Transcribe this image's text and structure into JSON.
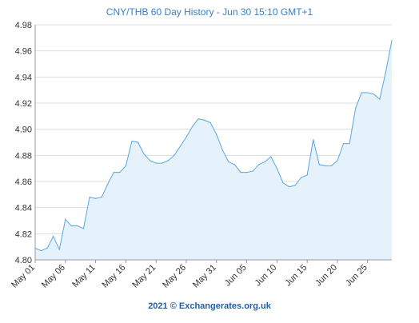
{
  "title": "CNY/THB 60 Day History - Jun 30 15:10 GMT+1",
  "footer": "2021 © Exchangerates.org.uk",
  "chart_data": {
    "type": "area",
    "title": "CNY/THB 60 Day History - Jun 30 15:10 GMT+1",
    "xlabel": "",
    "ylabel": "",
    "ylim": [
      4.8,
      4.98
    ],
    "yticks": [
      "4.80",
      "4.82",
      "4.84",
      "4.86",
      "4.88",
      "4.90",
      "4.92",
      "4.94",
      "4.96",
      "4.98"
    ],
    "xticks": [
      "May 01",
      "May 06",
      "May 11",
      "May 16",
      "May 21",
      "May 26",
      "May 31",
      "Jun 05",
      "Jun 10",
      "Jun 15",
      "Jun 20",
      "Jun 25"
    ],
    "grid": true,
    "line_color": "#5aa7de",
    "fill_color": "#e5f1fb",
    "values": [
      4.809,
      4.807,
      4.809,
      4.818,
      4.808,
      4.831,
      4.826,
      4.826,
      4.824,
      4.848,
      4.847,
      4.848,
      4.858,
      4.867,
      4.867,
      4.872,
      4.891,
      4.89,
      4.881,
      4.876,
      4.874,
      4.874,
      4.876,
      4.88,
      4.887,
      4.894,
      4.902,
      4.908,
      4.907,
      4.905,
      4.896,
      4.884,
      4.875,
      4.873,
      4.867,
      4.867,
      4.868,
      4.873,
      4.875,
      4.879,
      4.87,
      4.859,
      4.856,
      4.857,
      4.863,
      4.865,
      4.892,
      4.873,
      4.872,
      4.872,
      4.876,
      4.889,
      4.889,
      4.916,
      4.928,
      4.928,
      4.927,
      4.923,
      4.944,
      4.968
    ]
  }
}
